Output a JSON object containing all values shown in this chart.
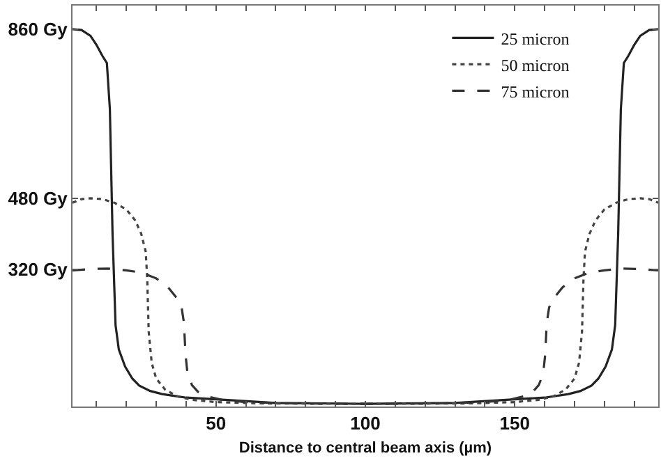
{
  "chart_data": {
    "type": "line",
    "xlabel": "Distance to central beam axis (µm)",
    "xlim": [
      2,
      198
    ],
    "xticks": [
      {
        "value": 10,
        "label": null
      },
      {
        "value": 20,
        "label": null
      },
      {
        "value": 30,
        "label": null
      },
      {
        "value": 40,
        "label": null
      },
      50,
      {
        "value": 60,
        "label": null
      },
      {
        "value": 70,
        "label": null
      },
      {
        "value": 80,
        "label": null
      },
      {
        "value": 90,
        "label": null
      },
      100,
      {
        "value": 110,
        "label": null
      },
      {
        "value": 120,
        "label": null
      },
      {
        "value": 130,
        "label": null
      },
      {
        "value": 140,
        "label": null
      },
      150,
      {
        "value": 160,
        "label": null
      },
      {
        "value": 170,
        "label": null
      },
      {
        "value": 180,
        "label": null
      },
      {
        "value": 190,
        "label": null
      }
    ],
    "ylim": [
      12,
      913
    ],
    "yticks": [
      {
        "value": 320,
        "label": "320 Gy"
      },
      {
        "value": 480,
        "label": "480 Gy"
      },
      {
        "value": 860,
        "label": "860 Gy"
      }
    ],
    "legend": "top right",
    "grid": false,
    "marker": "none",
    "series": [
      {
        "name": "25 micron",
        "color": "#222222",
        "line_style": "solid",
        "x": [
          2,
          5,
          8,
          10,
          12,
          13.5,
          14.5,
          15.4,
          16.4,
          17.5,
          19.6,
          22,
          24.3,
          28,
          32,
          40,
          51,
          70,
          100,
          130,
          149,
          160,
          168,
          172,
          175.7,
          178,
          180.4,
          182.5,
          183.6,
          184.6,
          185.5,
          186.5,
          188,
          190,
          192,
          195,
          198
        ],
        "values": [
          860,
          858,
          845,
          825,
          800,
          784,
          680,
          400,
          195,
          140,
          102,
          75,
          59,
          47,
          40,
          32,
          28,
          20,
          18,
          20,
          28,
          32,
          40,
          47,
          59,
          75,
          102,
          140,
          195,
          400,
          680,
          784,
          800,
          825,
          845,
          858,
          860
        ]
      },
      {
        "name": "50 micron",
        "color": "#444444",
        "line_style": "dotted",
        "x": [
          2,
          5,
          8,
          12,
          16,
          20,
          23,
          25,
          26.5,
          27,
          27.5,
          28.5,
          30,
          33,
          37,
          42,
          50,
          65,
          100,
          135,
          150,
          158,
          163,
          167,
          170,
          171.5,
          172.5,
          173,
          173.5,
          175,
          177,
          180,
          184,
          188,
          192,
          195,
          198
        ],
        "values": [
          470,
          478,
          480,
          478,
          470,
          455,
          430,
          400,
          360,
          300,
          180,
          110,
          75,
          50,
          35,
          27,
          22,
          19,
          18,
          19,
          22,
          27,
          35,
          50,
          75,
          110,
          180,
          300,
          360,
          400,
          430,
          455,
          470,
          478,
          480,
          478,
          470
        ]
      },
      {
        "name": "75 micron",
        "color": "#333333",
        "line_style": "dashed",
        "x": [
          2,
          8,
          14,
          20,
          25,
          30,
          34,
          37,
          38.5,
          39.3,
          39.8,
          40.5,
          42,
          44,
          47,
          52,
          60,
          75,
          100,
          125,
          140,
          148,
          153,
          156,
          158,
          159.5,
          160.2,
          160.7,
          161.5,
          163,
          166,
          170,
          175,
          180,
          186,
          192,
          198
        ],
        "values": [
          318,
          321,
          322,
          318,
          313,
          300,
          280,
          255,
          235,
          200,
          130,
          85,
          60,
          45,
          35,
          27,
          22,
          19,
          18,
          19,
          22,
          27,
          35,
          45,
          60,
          85,
          130,
          200,
          235,
          255,
          280,
          300,
          313,
          318,
          322,
          321,
          318
        ]
      }
    ]
  }
}
